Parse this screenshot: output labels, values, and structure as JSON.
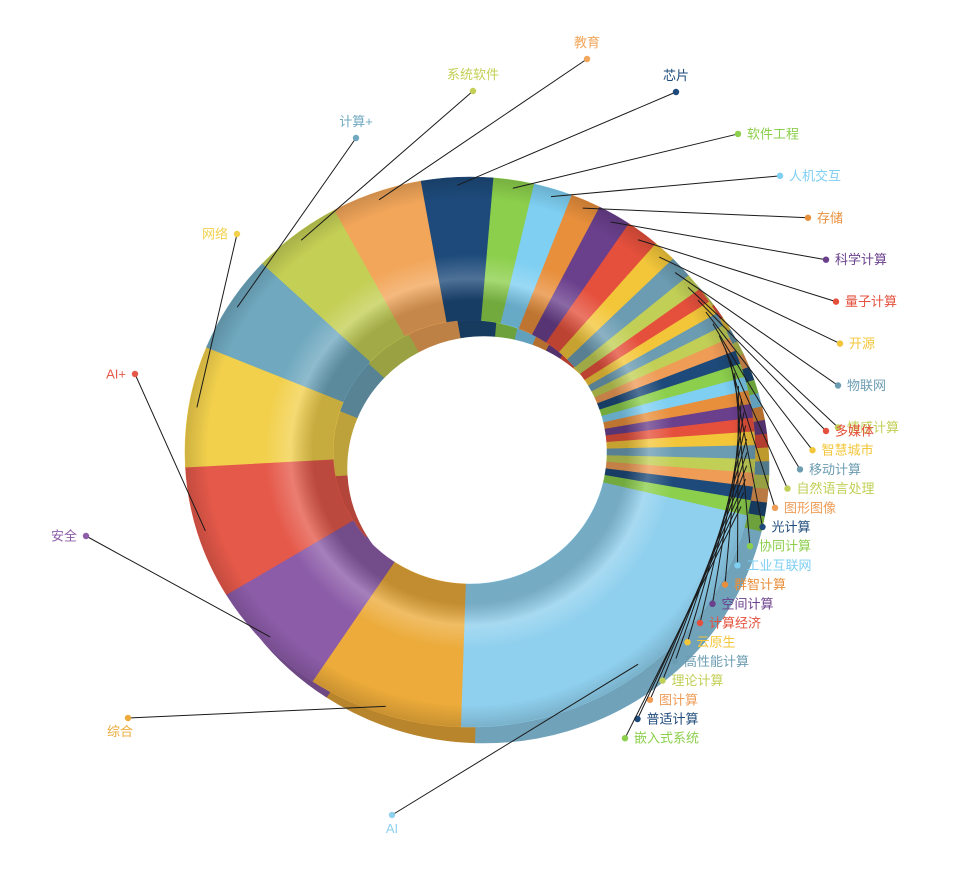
{
  "chart_data": {
    "type": "pie",
    "style": "3d-donut",
    "legend": "none",
    "slices": [
      {
        "label": "芯片",
        "value": 4.1,
        "color": "#1d4a7a"
      },
      {
        "label": "软件工程",
        "value": 2.3,
        "color": "#8ccf4c"
      },
      {
        "label": "人机交互",
        "value": 2.2,
        "color": "#7ecff2"
      },
      {
        "label": "存储",
        "value": 1.7,
        "color": "#e88f3c"
      },
      {
        "label": "科学计算",
        "value": 1.9,
        "color": "#6a3f8c"
      },
      {
        "label": "量子计算",
        "value": 1.9,
        "color": "#e5503c"
      },
      {
        "label": "开源",
        "value": 1.3,
        "color": "#f3c63a"
      },
      {
        "label": "物联网",
        "value": 1.3,
        "color": "#6b9cb2"
      },
      {
        "label": "情感计算",
        "value": 1.0,
        "color": "#c2cf56"
      },
      {
        "label": "多媒体",
        "value": 0.9,
        "color": "#e5503c"
      },
      {
        "label": "智慧城市",
        "value": 0.8,
        "color": "#f3c63a"
      },
      {
        "label": "移动计算",
        "value": 0.8,
        "color": "#6b9cb2"
      },
      {
        "label": "自然语言处理",
        "value": 0.8,
        "color": "#c2cf56"
      },
      {
        "label": "图形图像",
        "value": 0.8,
        "color": "#ef9c57"
      },
      {
        "label": "光计算",
        "value": 0.8,
        "color": "#1d4a7a"
      },
      {
        "label": "协同计算",
        "value": 0.8,
        "color": "#8ccf4c"
      },
      {
        "label": "工业互联网",
        "value": 0.8,
        "color": "#7ecff2"
      },
      {
        "label": "群智计算",
        "value": 0.8,
        "color": "#e88f3c"
      },
      {
        "label": "空间计算",
        "value": 0.8,
        "color": "#6a3f8c"
      },
      {
        "label": "计算经济",
        "value": 0.8,
        "color": "#e5503c"
      },
      {
        "label": "云原生",
        "value": 0.8,
        "color": "#f3c63a"
      },
      {
        "label": "高性能计算",
        "value": 0.8,
        "color": "#6b9cb2"
      },
      {
        "label": "理论计算",
        "value": 0.8,
        "color": "#c2cf56"
      },
      {
        "label": "图计算",
        "value": 0.8,
        "color": "#ef9c57"
      },
      {
        "label": "普适计算",
        "value": 0.8,
        "color": "#1d4a7a"
      },
      {
        "label": "嵌入式系统",
        "value": 0.9,
        "color": "#8ccf4c"
      },
      {
        "label": "AI",
        "value": 21.8,
        "color": "#8fd0ee"
      },
      {
        "label": "综合",
        "value": 8.8,
        "color": "#ecab3a"
      },
      {
        "label": "安全",
        "value": 7.0,
        "color": "#8c5ca8"
      },
      {
        "label": "AI+",
        "value": 7.8,
        "color": "#e5594a"
      },
      {
        "label": "网络",
        "value": 7.1,
        "color": "#f2d04c"
      },
      {
        "label": "计算+",
        "value": 5.8,
        "color": "#6fa8bf"
      },
      {
        "label": "系统软件",
        "value": 5.1,
        "color": "#c4cf55"
      },
      {
        "label": "教育",
        "value": 5.1,
        "color": "#f2a65a"
      }
    ]
  }
}
